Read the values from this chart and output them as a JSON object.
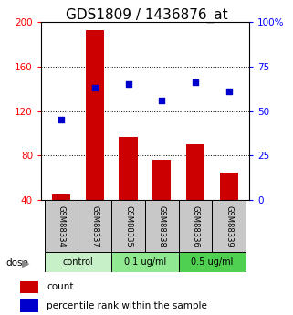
{
  "title": "GDS1809 / 1436876_at",
  "samples": [
    "GSM88334",
    "GSM88337",
    "GSM88335",
    "GSM88338",
    "GSM88336",
    "GSM88339"
  ],
  "groups": [
    {
      "label": "control",
      "indices": [
        0,
        1
      ],
      "color": "#c8f0c8"
    },
    {
      "label": "0.1 ug/ml",
      "indices": [
        2,
        3
      ],
      "color": "#90e890"
    },
    {
      "label": "0.5 ug/ml",
      "indices": [
        4,
        5
      ],
      "color": "#50d050"
    }
  ],
  "bar_values": [
    45,
    193,
    97,
    76,
    90,
    65
  ],
  "scatter_values": [
    45,
    63,
    65,
    56,
    66,
    61
  ],
  "ylim_left": [
    40,
    200
  ],
  "ylim_right": [
    0,
    100
  ],
  "yticks_left": [
    40,
    80,
    120,
    160,
    200
  ],
  "yticks_right": [
    0,
    25,
    50,
    75,
    100
  ],
  "bar_color": "#cc0000",
  "scatter_color": "#0000cc",
  "dose_label": "dose",
  "legend_count": "count",
  "legend_pct": "percentile rank within the sample",
  "sample_bg_color": "#c8c8c8",
  "title_fontsize": 11,
  "tick_fontsize": 7.5
}
